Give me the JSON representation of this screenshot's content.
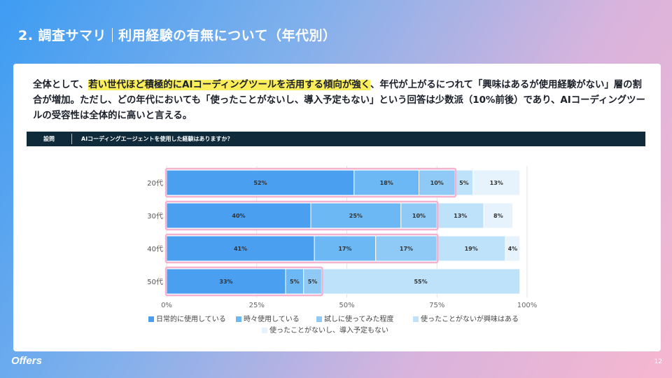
{
  "header": {
    "title": "2. 調査サマリ",
    "subtitle": "利用経験の有無について（年代別）"
  },
  "summary": {
    "before": "全体として、",
    "highlight": "若い世代ほど積極的にAIコーディングツールを活用する傾向が強く",
    "after": "、年代が上がるにつれて「興味はあるが使用経験がない」層の割合が増加。ただし、どの年代においても「使ったことがないし、導入予定もない」という回答は少数派（10%前後）であり、AIコーディングツールの受容性は全体的に高いと言える。"
  },
  "question": {
    "label": "設問",
    "text": "AIコーディングエージェントを使用した経験はありますか？"
  },
  "chart_data": {
    "type": "bar",
    "orientation": "horizontal",
    "stacked": true,
    "categories": [
      "20代",
      "30代",
      "40代",
      "50代"
    ],
    "series": [
      {
        "name": "日常的に使用している",
        "values": [
          52,
          40,
          41,
          33
        ],
        "color": "#4a9ff0"
      },
      {
        "name": "時々使用している",
        "values": [
          18,
          25,
          17,
          5
        ],
        "color": "#6cb8f4"
      },
      {
        "name": "試しに使ってみた程度",
        "values": [
          10,
          10,
          17,
          5
        ],
        "color": "#8fcaf6"
      },
      {
        "name": "使ったことがないが興味はある",
        "values": [
          5,
          13,
          19,
          55
        ],
        "color": "#bfe2fb"
      },
      {
        "name": "使ったことがないし、導入予定もない",
        "values": [
          13,
          8,
          4,
          0
        ],
        "color": "#e6f3fd"
      }
    ],
    "data_labels": [
      [
        "52%",
        "18%",
        "10%",
        "5%",
        "13%"
      ],
      [
        "40%",
        "25%",
        "10%",
        "13%",
        "8%"
      ],
      [
        "41%",
        "17%",
        "17%",
        "19%",
        "4%"
      ],
      [
        "33%",
        "5%",
        "5%",
        "55%",
        ""
      ]
    ],
    "highlighted_share": [
      80,
      75,
      75,
      43
    ],
    "highlight_color": "#f3b3cf",
    "xlim": [
      0,
      100
    ],
    "xticks": [
      "0%",
      "25%",
      "50%",
      "75%",
      "100%"
    ],
    "legend_position": "bottom"
  },
  "footer": {
    "logo": "Offers",
    "page": "12"
  }
}
